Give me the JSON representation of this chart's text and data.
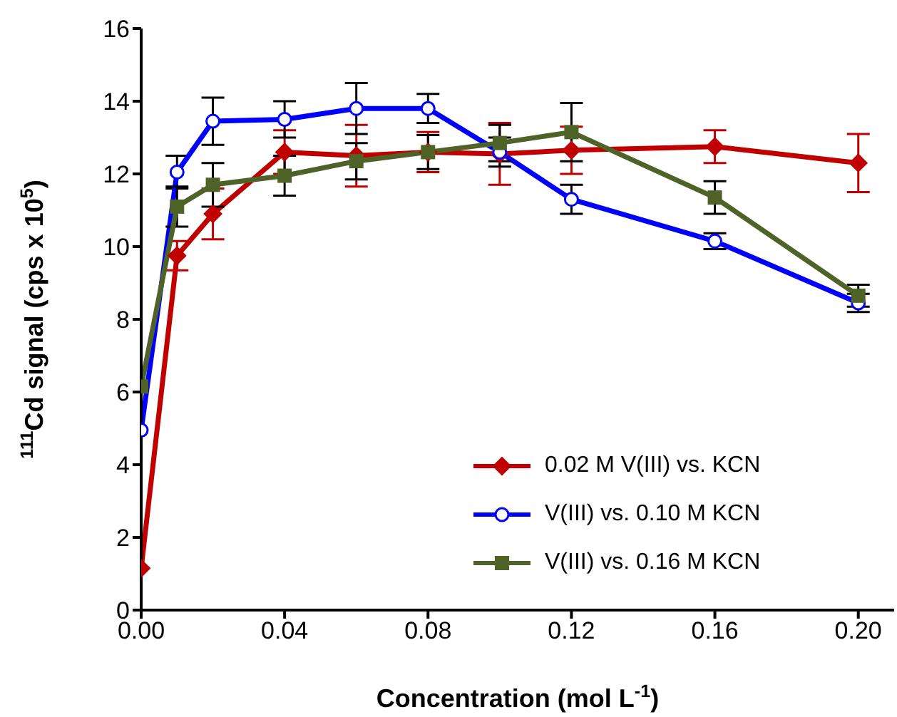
{
  "chart_data": {
    "type": "line",
    "xlabel": "Concentration (mol L$^{-1}$)",
    "ylabel": "$^{111}$Cd signal (cps x 10$^{5}$)",
    "x": [
      0,
      0.01,
      0.02,
      0.04,
      0.06,
      0.08,
      0.1,
      0.12,
      0.16,
      0.2
    ],
    "xlim": [
      0,
      0.21
    ],
    "xticks": [
      {
        "value": 0,
        "label": "0.00"
      },
      {
        "value": 0.04,
        "label": "0.04"
      },
      {
        "value": 0.08,
        "label": "0.08"
      },
      {
        "value": 0.12,
        "label": "0.12"
      },
      {
        "value": 0.16,
        "label": "0.16"
      },
      {
        "value": 0.2,
        "label": "0.20"
      }
    ],
    "ylim": [
      0,
      16
    ],
    "yticks": [
      0,
      2,
      4,
      6,
      8,
      10,
      12,
      14,
      16
    ],
    "grid": false,
    "legend": "bottom right",
    "line_style": "solid",
    "series": [
      {
        "name": "0.02 M V(III) vs. KCN",
        "color": "#c00000",
        "marker": "diamond",
        "values": [
          1.15,
          9.75,
          10.9,
          12.6,
          12.5,
          12.6,
          12.55,
          12.65,
          12.75,
          12.3
        ],
        "errors": [
          null,
          0.4,
          0.7,
          0.6,
          0.85,
          0.55,
          0.85,
          0.65,
          0.45,
          0.8
        ]
      },
      {
        "name": "V(III) vs. 0.10 M KCN",
        "color": "#0000ff",
        "marker": "circle",
        "values": [
          4.95,
          12.05,
          13.45,
          13.5,
          13.8,
          13.8,
          12.6,
          11.3,
          10.15,
          8.45
        ],
        "errors": [
          null,
          0.45,
          0.65,
          0.5,
          0.7,
          0.4,
          0.4,
          0.4,
          0.22,
          0.25
        ]
      },
      {
        "name": "V(III) vs. 0.16 M KCN",
        "color": "#4f6228",
        "marker": "square",
        "values": [
          6.15,
          11.1,
          11.7,
          11.95,
          12.35,
          12.6,
          12.85,
          13.15,
          11.35,
          8.65
        ],
        "errors": [
          null,
          0.55,
          0.6,
          0.55,
          0.5,
          0.47,
          0.5,
          0.8,
          0.45,
          0.3
        ]
      }
    ]
  }
}
